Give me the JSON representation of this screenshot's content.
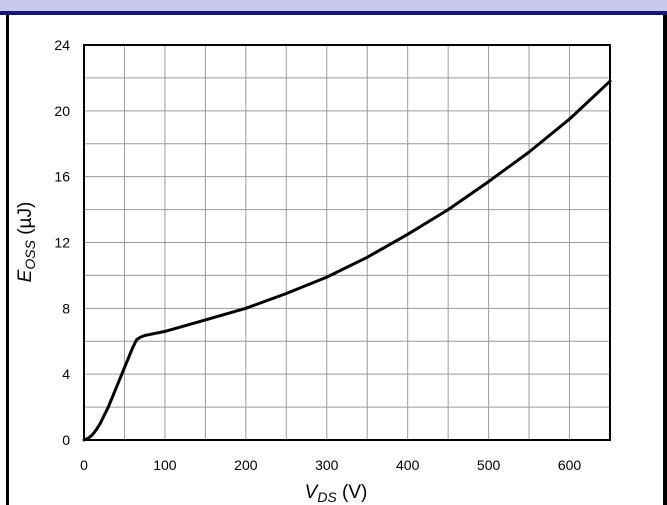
{
  "chart_data": {
    "type": "line",
    "xlabel": {
      "main": "V",
      "sub": "DS",
      "unit": " (V)"
    },
    "ylabel": {
      "main": "E",
      "sub": "OSS",
      "unit": " (µJ)"
    },
    "xlim": [
      0,
      650
    ],
    "ylim": [
      0,
      24
    ],
    "x_ticks": [
      0,
      100,
      200,
      300,
      400,
      500,
      600
    ],
    "y_ticks": [
      0,
      4,
      8,
      12,
      16,
      20,
      24
    ],
    "x_minor_step": 50,
    "y_minor_step": 2,
    "grid": true,
    "series": [
      {
        "x": [
          0,
          5,
          10,
          15,
          20,
          30,
          40,
          50,
          60,
          65,
          70,
          75,
          80,
          100,
          150,
          200,
          250,
          300,
          350,
          400,
          450,
          500,
          550,
          600,
          650
        ],
        "y": [
          0,
          0.1,
          0.3,
          0.6,
          1.0,
          2.0,
          3.2,
          4.4,
          5.6,
          6.1,
          6.25,
          6.35,
          6.4,
          6.6,
          7.3,
          8.0,
          8.9,
          9.9,
          11.1,
          12.5,
          14.0,
          15.7,
          17.5,
          19.5,
          21.8
        ]
      }
    ],
    "colors": {
      "line": "#000000",
      "grid": "#9a9a9a",
      "band": "#c9c9ee",
      "band_edge": "#17176b"
    }
  }
}
